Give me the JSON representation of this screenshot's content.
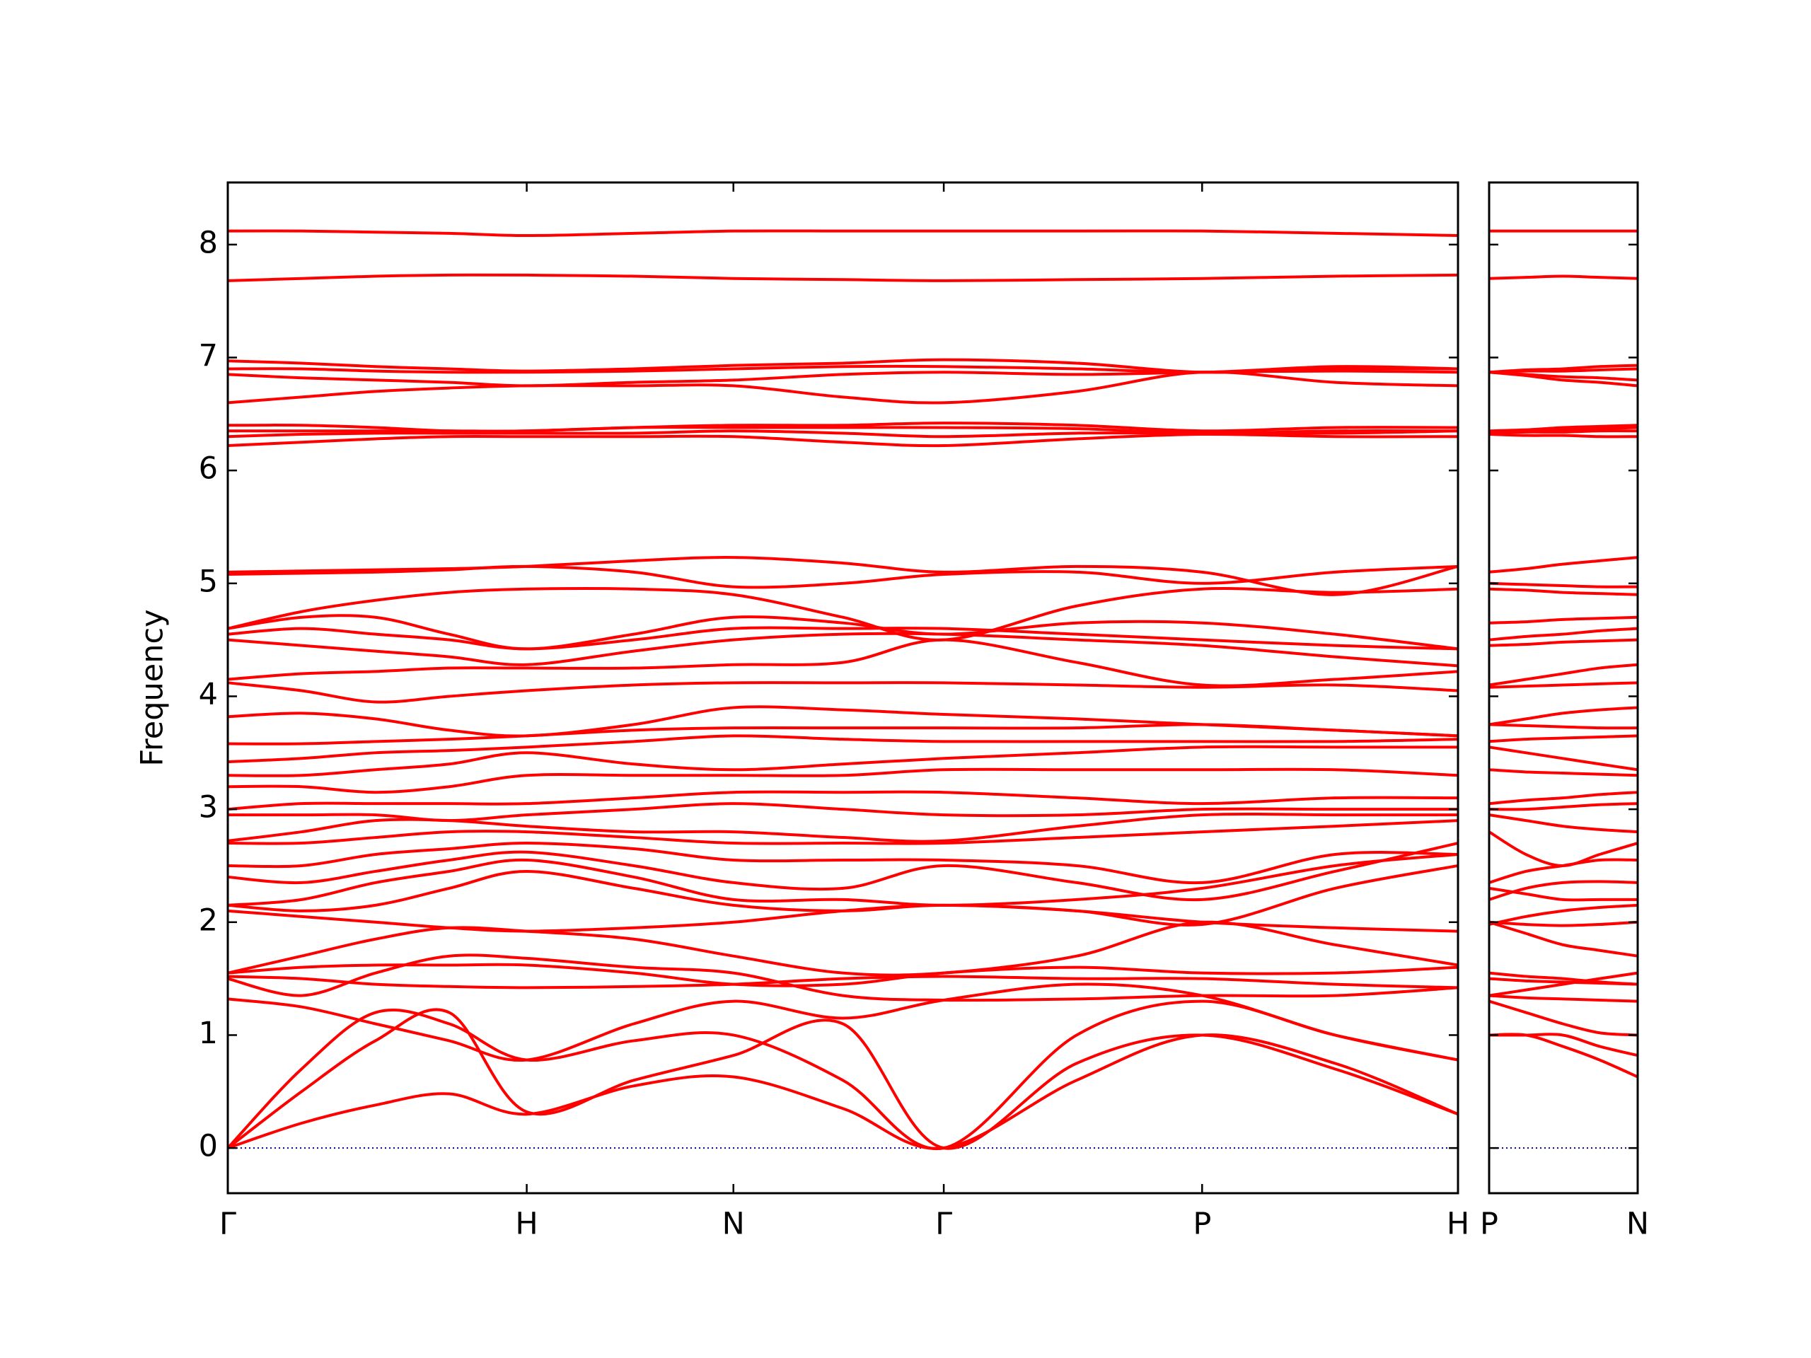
{
  "chart_data": [
    {
      "type": "line",
      "ylabel": "Frequency",
      "color": "#ff0000",
      "hline": 0,
      "hline_color": "#00008b",
      "xlim": [
        0,
        1
      ],
      "ylim": [
        -0.4,
        8.55
      ],
      "xticks": [
        {
          "value": 0,
          "label": "Γ"
        },
        {
          "value": 0.243,
          "label": "H"
        },
        {
          "value": 0.411,
          "label": "N"
        },
        {
          "value": 0.582,
          "label": "Γ"
        },
        {
          "value": 0.792,
          "label": "P"
        },
        {
          "value": 1,
          "label": "H"
        }
      ],
      "yticks": [
        0,
        1,
        2,
        3,
        4,
        5,
        6,
        7,
        8
      ],
      "ytick_labels": true,
      "x": [
        0,
        0.06,
        0.12,
        0.18,
        0.243,
        0.33,
        0.411,
        0.5,
        0.582,
        0.69,
        0.792,
        0.9,
        1
      ],
      "series": [
        {
          "values": [
            0,
            0.22,
            0.38,
            0.48,
            0.3,
            0.55,
            0.63,
            0.35,
            0,
            0.6,
            1.0,
            0.75,
            0.3
          ]
        },
        {
          "values": [
            0,
            0.5,
            0.95,
            1.2,
            0.32,
            0.6,
            0.82,
            1.1,
            0,
            0.75,
            1.0,
            0.7,
            0.3
          ]
        },
        {
          "values": [
            0,
            0.7,
            1.2,
            1.1,
            0.78,
            0.95,
            1.0,
            0.6,
            0,
            1.0,
            1.3,
            1.0,
            0.78
          ]
        },
        {
          "values": [
            1.32,
            1.25,
            1.1,
            0.95,
            0.78,
            1.1,
            1.3,
            1.15,
            1.31,
            1.45,
            1.35,
            1.0,
            0.78
          ]
        },
        {
          "values": [
            1.5,
            1.35,
            1.55,
            1.7,
            1.68,
            1.6,
            1.55,
            1.35,
            1.31,
            1.32,
            1.35,
            1.35,
            1.42
          ]
        },
        {
          "values": [
            1.55,
            1.6,
            1.62,
            1.62,
            1.62,
            1.55,
            1.45,
            1.45,
            1.55,
            1.6,
            1.55,
            1.55,
            1.6
          ]
        },
        {
          "values": [
            1.52,
            1.5,
            1.45,
            1.43,
            1.42,
            1.43,
            1.45,
            1.5,
            1.52,
            1.5,
            1.5,
            1.45,
            1.42
          ]
        },
        {
          "values": [
            1.55,
            1.7,
            1.85,
            1.95,
            1.92,
            1.85,
            1.7,
            1.55,
            1.55,
            1.7,
            2.0,
            1.8,
            1.62
          ]
        },
        {
          "values": [
            2.1,
            2.05,
            2.0,
            1.95,
            1.92,
            1.95,
            2.0,
            2.1,
            2.15,
            2.1,
            2.0,
            1.95,
            1.92
          ]
        },
        {
          "values": [
            2.15,
            2.1,
            2.15,
            2.3,
            2.45,
            2.3,
            2.15,
            2.1,
            2.15,
            2.1,
            1.98,
            2.3,
            2.5
          ]
        },
        {
          "values": [
            2.15,
            2.2,
            2.35,
            2.45,
            2.55,
            2.4,
            2.2,
            2.2,
            2.15,
            2.2,
            2.3,
            2.5,
            2.6
          ]
        },
        {
          "values": [
            2.4,
            2.35,
            2.45,
            2.55,
            2.62,
            2.5,
            2.35,
            2.3,
            2.5,
            2.35,
            2.2,
            2.45,
            2.7
          ]
        },
        {
          "values": [
            2.5,
            2.5,
            2.6,
            2.65,
            2.7,
            2.65,
            2.55,
            2.55,
            2.55,
            2.5,
            2.35,
            2.6,
            2.6
          ]
        },
        {
          "values": [
            2.7,
            2.7,
            2.75,
            2.8,
            2.8,
            2.75,
            2.7,
            2.7,
            2.7,
            2.75,
            2.8,
            2.85,
            2.9
          ]
        },
        {
          "values": [
            2.72,
            2.8,
            2.9,
            2.9,
            2.85,
            2.8,
            2.8,
            2.75,
            2.72,
            2.85,
            2.95,
            2.95,
            2.95
          ]
        },
        {
          "values": [
            2.95,
            2.95,
            2.95,
            2.9,
            2.95,
            3.0,
            3.05,
            3.0,
            2.95,
            2.95,
            3.0,
            3.0,
            3.0
          ]
        },
        {
          "values": [
            3.0,
            3.05,
            3.05,
            3.05,
            3.05,
            3.1,
            3.15,
            3.15,
            3.15,
            3.1,
            3.05,
            3.1,
            3.1
          ]
        },
        {
          "values": [
            3.2,
            3.2,
            3.15,
            3.2,
            3.3,
            3.3,
            3.3,
            3.3,
            3.35,
            3.35,
            3.35,
            3.35,
            3.3
          ]
        },
        {
          "values": [
            3.3,
            3.3,
            3.35,
            3.4,
            3.5,
            3.4,
            3.35,
            3.4,
            3.45,
            3.5,
            3.55,
            3.55,
            3.55
          ]
        },
        {
          "values": [
            3.42,
            3.45,
            3.5,
            3.52,
            3.55,
            3.6,
            3.65,
            3.62,
            3.6,
            3.6,
            3.6,
            3.6,
            3.62
          ]
        },
        {
          "values": [
            3.58,
            3.58,
            3.6,
            3.62,
            3.65,
            3.7,
            3.72,
            3.72,
            3.72,
            3.72,
            3.75,
            3.7,
            3.65
          ]
        },
        {
          "values": [
            3.82,
            3.85,
            3.8,
            3.7,
            3.65,
            3.75,
            3.9,
            3.88,
            3.84,
            3.8,
            3.75,
            3.7,
            3.65
          ]
        },
        {
          "values": [
            4.12,
            4.05,
            3.95,
            4.0,
            4.05,
            4.1,
            4.12,
            4.12,
            4.12,
            4.1,
            4.08,
            4.1,
            4.05
          ]
        },
        {
          "values": [
            4.15,
            4.2,
            4.22,
            4.25,
            4.25,
            4.25,
            4.28,
            4.3,
            4.5,
            4.3,
            4.1,
            4.15,
            4.22
          ]
        },
        {
          "values": [
            4.5,
            4.45,
            4.4,
            4.35,
            4.28,
            4.4,
            4.5,
            4.55,
            4.55,
            4.5,
            4.45,
            4.35,
            4.27
          ]
        },
        {
          "values": [
            4.55,
            4.6,
            4.55,
            4.5,
            4.42,
            4.5,
            4.6,
            4.6,
            4.6,
            4.55,
            4.5,
            4.45,
            4.42
          ]
        },
        {
          "values": [
            4.6,
            4.7,
            4.7,
            4.55,
            4.42,
            4.55,
            4.7,
            4.65,
            4.55,
            4.65,
            4.65,
            4.55,
            4.42
          ]
        },
        {
          "values": [
            4.6,
            4.75,
            4.85,
            4.92,
            4.95,
            4.95,
            4.9,
            4.7,
            4.5,
            4.8,
            4.95,
            4.92,
            4.95
          ]
        },
        {
          "values": [
            5.08,
            5.09,
            5.1,
            5.12,
            5.15,
            5.1,
            4.97,
            5.0,
            5.08,
            5.1,
            5.0,
            5.1,
            5.15
          ]
        },
        {
          "values": [
            5.1,
            5.11,
            5.12,
            5.13,
            5.15,
            5.2,
            5.23,
            5.18,
            5.1,
            5.15,
            5.1,
            4.9,
            5.15
          ]
        },
        {
          "values": [
            6.22,
            6.25,
            6.28,
            6.3,
            6.3,
            6.3,
            6.3,
            6.25,
            6.22,
            6.28,
            6.32,
            6.3,
            6.3
          ]
        },
        {
          "values": [
            6.3,
            6.32,
            6.33,
            6.33,
            6.33,
            6.33,
            6.35,
            6.33,
            6.3,
            6.33,
            6.33,
            6.33,
            6.35
          ]
        },
        {
          "values": [
            6.35,
            6.35,
            6.35,
            6.35,
            6.35,
            6.38,
            6.38,
            6.38,
            6.38,
            6.37,
            6.33,
            6.35,
            6.35
          ]
        },
        {
          "values": [
            6.4,
            6.4,
            6.38,
            6.35,
            6.35,
            6.38,
            6.4,
            6.4,
            6.42,
            6.4,
            6.35,
            6.38,
            6.38
          ]
        },
        {
          "values": [
            6.6,
            6.65,
            6.7,
            6.73,
            6.75,
            6.75,
            6.75,
            6.65,
            6.6,
            6.7,
            6.87,
            6.78,
            6.75
          ]
        },
        {
          "values": [
            6.85,
            6.82,
            6.8,
            6.78,
            6.75,
            6.78,
            6.8,
            6.85,
            6.87,
            6.85,
            6.87,
            6.88,
            6.87
          ]
        },
        {
          "values": [
            6.9,
            6.9,
            6.88,
            6.87,
            6.87,
            6.88,
            6.9,
            6.92,
            6.92,
            6.9,
            6.87,
            6.92,
            6.9
          ]
        },
        {
          "values": [
            6.97,
            6.95,
            6.92,
            6.9,
            6.88,
            6.9,
            6.93,
            6.95,
            6.98,
            6.95,
            6.87,
            6.9,
            6.9
          ]
        },
        {
          "values": [
            7.68,
            7.7,
            7.72,
            7.73,
            7.73,
            7.72,
            7.7,
            7.69,
            7.68,
            7.69,
            7.7,
            7.72,
            7.73
          ]
        },
        {
          "values": [
            8.12,
            8.12,
            8.11,
            8.1,
            8.08,
            8.1,
            8.12,
            8.12,
            8.12,
            8.12,
            8.12,
            8.1,
            8.08
          ]
        }
      ]
    },
    {
      "type": "line",
      "color": "#ff0000",
      "hline": 0,
      "hline_color": "#00008b",
      "xlim": [
        0,
        0.121
      ],
      "ylim": [
        -0.4,
        8.55
      ],
      "xticks": [
        {
          "value": 0,
          "label": "P"
        },
        {
          "value": 0.121,
          "label": "N"
        }
      ],
      "yticks": [
        0,
        1,
        2,
        3,
        4,
        5,
        6,
        7,
        8
      ],
      "ytick_labels": false,
      "x": [
        0,
        0.03,
        0.06,
        0.09,
        0.121
      ],
      "series": [
        {
          "values": [
            1.0,
            1.0,
            0.9,
            0.78,
            0.63
          ]
        },
        {
          "values": [
            1.0,
            1.0,
            1.0,
            0.9,
            0.82
          ]
        },
        {
          "values": [
            1.3,
            1.2,
            1.1,
            1.02,
            1.0
          ]
        },
        {
          "values": [
            1.35,
            1.33,
            1.32,
            1.31,
            1.3
          ]
        },
        {
          "values": [
            1.35,
            1.4,
            1.45,
            1.5,
            1.55
          ]
        },
        {
          "values": [
            1.55,
            1.52,
            1.5,
            1.47,
            1.45
          ]
        },
        {
          "values": [
            1.5,
            1.48,
            1.47,
            1.46,
            1.45
          ]
        },
        {
          "values": [
            2.0,
            1.9,
            1.8,
            1.75,
            1.7
          ]
        },
        {
          "values": [
            2.0,
            1.98,
            1.97,
            1.98,
            2.0
          ]
        },
        {
          "values": [
            1.98,
            2.05,
            2.1,
            2.13,
            2.15
          ]
        },
        {
          "values": [
            2.3,
            2.25,
            2.2,
            2.2,
            2.2
          ]
        },
        {
          "values": [
            2.2,
            2.3,
            2.35,
            2.36,
            2.35
          ]
        },
        {
          "values": [
            2.35,
            2.45,
            2.5,
            2.55,
            2.55
          ]
        },
        {
          "values": [
            2.8,
            2.6,
            2.5,
            2.6,
            2.7
          ]
        },
        {
          "values": [
            2.95,
            2.9,
            2.85,
            2.82,
            2.8
          ]
        },
        {
          "values": [
            3.0,
            3.0,
            3.02,
            3.04,
            3.05
          ]
        },
        {
          "values": [
            3.05,
            3.08,
            3.1,
            3.13,
            3.15
          ]
        },
        {
          "values": [
            3.35,
            3.33,
            3.32,
            3.31,
            3.3
          ]
        },
        {
          "values": [
            3.55,
            3.5,
            3.45,
            3.4,
            3.35
          ]
        },
        {
          "values": [
            3.6,
            3.62,
            3.63,
            3.64,
            3.65
          ]
        },
        {
          "values": [
            3.75,
            3.74,
            3.73,
            3.72,
            3.72
          ]
        },
        {
          "values": [
            3.75,
            3.8,
            3.85,
            3.88,
            3.9
          ]
        },
        {
          "values": [
            4.08,
            4.09,
            4.1,
            4.11,
            4.12
          ]
        },
        {
          "values": [
            4.1,
            4.15,
            4.2,
            4.25,
            4.28
          ]
        },
        {
          "values": [
            4.45,
            4.46,
            4.48,
            4.49,
            4.5
          ]
        },
        {
          "values": [
            4.5,
            4.53,
            4.55,
            4.58,
            4.6
          ]
        },
        {
          "values": [
            4.65,
            4.66,
            4.68,
            4.69,
            4.7
          ]
        },
        {
          "values": [
            4.95,
            4.94,
            4.92,
            4.91,
            4.9
          ]
        },
        {
          "values": [
            5.0,
            4.99,
            4.98,
            4.97,
            4.97
          ]
        },
        {
          "values": [
            5.1,
            5.13,
            5.17,
            5.2,
            5.23
          ]
        },
        {
          "values": [
            6.32,
            6.31,
            6.31,
            6.3,
            6.3
          ]
        },
        {
          "values": [
            6.33,
            6.34,
            6.34,
            6.35,
            6.35
          ]
        },
        {
          "values": [
            6.33,
            6.35,
            6.36,
            6.37,
            6.38
          ]
        },
        {
          "values": [
            6.35,
            6.36,
            6.38,
            6.39,
            6.4
          ]
        },
        {
          "values": [
            6.87,
            6.84,
            6.8,
            6.78,
            6.75
          ]
        },
        {
          "values": [
            6.87,
            6.85,
            6.83,
            6.82,
            6.8
          ]
        },
        {
          "values": [
            6.87,
            6.88,
            6.88,
            6.89,
            6.9
          ]
        },
        {
          "values": [
            6.87,
            6.89,
            6.9,
            6.92,
            6.93
          ]
        },
        {
          "values": [
            7.7,
            7.71,
            7.72,
            7.71,
            7.7
          ]
        },
        {
          "values": [
            8.12,
            8.12,
            8.12,
            8.12,
            8.12
          ]
        }
      ]
    }
  ]
}
